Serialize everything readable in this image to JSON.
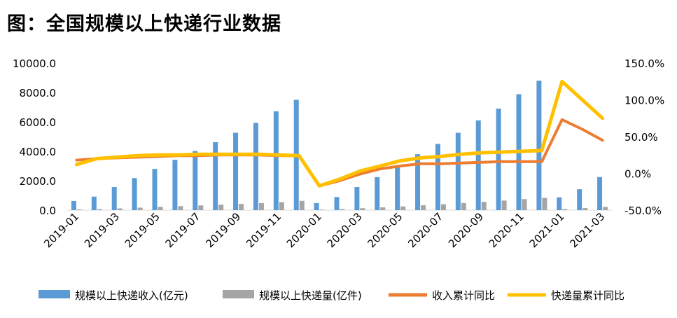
{
  "title": "图：全国规模以上快递行业数据",
  "chart_data": {
    "type": "bar",
    "categories": [
      "2019-01",
      "2019-02",
      "2019-03",
      "2019-04",
      "2019-05",
      "2019-06",
      "2019-07",
      "2019-08",
      "2019-09",
      "2019-10",
      "2019-11",
      "2019-12",
      "2020-01",
      "2020-02",
      "2020-03",
      "2020-04",
      "2020-05",
      "2020-06",
      "2020-07",
      "2020-08",
      "2020-09",
      "2020-10",
      "2020-11",
      "2020-12",
      "2021-01",
      "2021-02",
      "2021-03"
    ],
    "x_tick_labels": [
      "2019-01",
      "2019-03",
      "2019-05",
      "2019-07",
      "2019-09",
      "2019-11",
      "2020-01",
      "2020-03",
      "2020-05",
      "2020-07",
      "2020-09",
      "2020-11",
      "2021-01",
      "2021-03"
    ],
    "y_left": {
      "min": 0,
      "max": 10000,
      "ticks": [
        "10000.0",
        "8000.0",
        "6000.0",
        "4000.0",
        "2000.0",
        "0.0"
      ]
    },
    "y_right": {
      "min": -0.5,
      "max": 1.5,
      "ticks": [
        "150.0%",
        "100.0%",
        "50.0%",
        "0.0%",
        "-50.0%"
      ]
    },
    "series": [
      {
        "name": "规模以上快递收入(亿元)",
        "type": "bar",
        "axis": "left",
        "color": "#5B9BD5",
        "values": [
          620,
          920,
          1570,
          2180,
          2800,
          3420,
          4020,
          4620,
          5260,
          5930,
          6720,
          7500,
          480,
          890,
          1570,
          2240,
          2950,
          3800,
          4500,
          5260,
          6100,
          6900,
          7880,
          8800,
          870,
          1420,
          2250
        ]
      },
      {
        "name": "规模以上快递量(亿件)",
        "type": "bar",
        "axis": "left",
        "color": "#A5A5A5",
        "values": [
          45,
          70,
          120,
          170,
          220,
          270,
          320,
          370,
          420,
          480,
          540,
          630,
          35,
          70,
          130,
          190,
          250,
          330,
          400,
          480,
          560,
          650,
          750,
          830,
          70,
          140,
          220
        ]
      },
      {
        "name": "收入累计同比",
        "type": "line",
        "axis": "right",
        "color": "#ED7D31",
        "values": [
          0.18,
          0.2,
          0.21,
          0.22,
          0.23,
          0.24,
          0.24,
          0.25,
          0.25,
          0.25,
          0.24,
          0.24,
          -0.17,
          -0.1,
          -0.01,
          0.06,
          0.1,
          0.13,
          0.13,
          0.14,
          0.15,
          0.16,
          0.16,
          0.16,
          0.73,
          0.6,
          0.45
        ]
      },
      {
        "name": "快递量累计同比",
        "type": "line",
        "axis": "right",
        "color": "#FFC000",
        "values": [
          0.12,
          0.2,
          0.22,
          0.24,
          0.25,
          0.25,
          0.26,
          0.26,
          0.26,
          0.26,
          0.25,
          0.24,
          -0.17,
          -0.08,
          0.03,
          0.1,
          0.17,
          0.21,
          0.23,
          0.26,
          0.28,
          0.29,
          0.3,
          0.31,
          1.25,
          1.0,
          0.75
        ]
      }
    ],
    "legend_position": "bottom"
  }
}
